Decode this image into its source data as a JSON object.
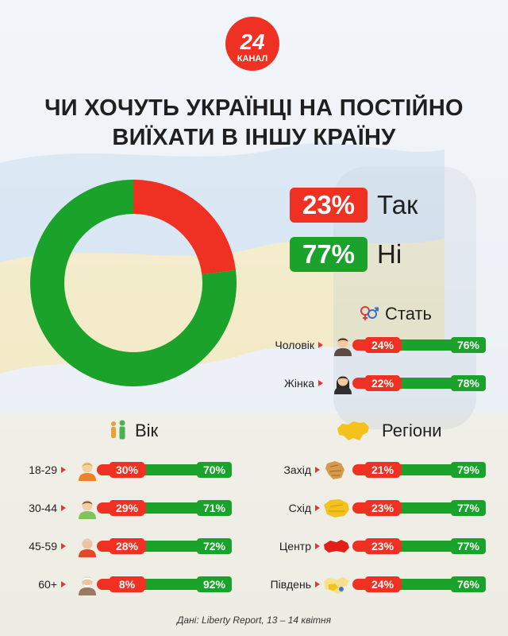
{
  "brand": {
    "logo_number": "24",
    "logo_text": "КАНАЛ",
    "color": "#ef3124"
  },
  "title": {
    "line1": "ЧИ ХОЧУТЬ УКРАЇНЦІ НА ПОСТІЙНО",
    "line2": "ВИЇХАТИ В ІНШУ КРАЇНУ"
  },
  "colors": {
    "yes": "#ef3124",
    "no": "#1ba22b"
  },
  "source": "Дані: Liberty Report, 13 – 14 квітня",
  "chart_data": [
    {
      "type": "pie",
      "donut": true,
      "labels": [
        "Так",
        "Ні"
      ],
      "values": [
        23,
        77
      ],
      "value_labels": [
        "23%",
        "77%"
      ],
      "legend": "right"
    },
    {
      "type": "bar",
      "stacked": true,
      "title": "Стать",
      "categories": [
        "Чоловік",
        "Жінка"
      ],
      "icons": [
        "man-icon",
        "woman-icon"
      ],
      "series": [
        {
          "name": "Так",
          "values": [
            24,
            22
          ],
          "labels": [
            "24%",
            "22%"
          ]
        },
        {
          "name": "Ні",
          "values": [
            76,
            78
          ],
          "labels": [
            "76%",
            "78%"
          ]
        }
      ]
    },
    {
      "type": "bar",
      "stacked": true,
      "title": "Вік",
      "categories": [
        "18-29",
        "30-44",
        "45-59",
        "60+"
      ],
      "icons": [
        "young-person-icon",
        "adult-person-icon",
        "middle-aged-person-icon",
        "elderly-person-icon"
      ],
      "series": [
        {
          "name": "Так",
          "values": [
            30,
            29,
            28,
            8
          ],
          "labels": [
            "30%",
            "29%",
            "28%",
            "8%"
          ]
        },
        {
          "name": "Ні",
          "values": [
            70,
            71,
            72,
            92
          ],
          "labels": [
            "70%",
            "71%",
            "72%",
            "92%"
          ]
        }
      ]
    },
    {
      "type": "bar",
      "stacked": true,
      "title": "Регіони",
      "categories": [
        "Захід",
        "Схід",
        "Центр",
        "Південь"
      ],
      "icons": [
        "map-west-icon",
        "map-east-icon",
        "map-center-icon",
        "map-south-icon"
      ],
      "series": [
        {
          "name": "Так",
          "values": [
            21,
            23,
            23,
            24
          ],
          "labels": [
            "21%",
            "23%",
            "23%",
            "24%"
          ]
        },
        {
          "name": "Ні",
          "values": [
            79,
            77,
            77,
            76
          ],
          "labels": [
            "79%",
            "77%",
            "77%",
            "76%"
          ]
        }
      ]
    }
  ]
}
